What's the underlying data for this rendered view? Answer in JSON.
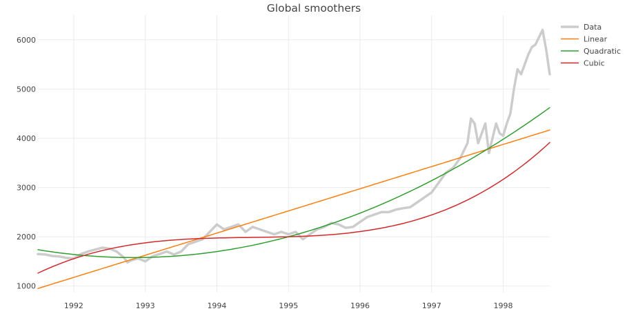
{
  "chart_data": {
    "type": "line",
    "title": "Global smoothers",
    "xlabel": "",
    "ylabel": "",
    "xlim": [
      1991.5,
      1998.65
    ],
    "ylim": [
      870,
      6500
    ],
    "xticks": [
      1992,
      1993,
      1994,
      1995,
      1996,
      1997,
      1998
    ],
    "xtick_labels": [
      "1992",
      "1993",
      "1994",
      "1995",
      "1996",
      "1997",
      "1998"
    ],
    "yticks": [
      1000,
      2000,
      3000,
      4000,
      5000,
      6000
    ],
    "ytick_labels": [
      "1000",
      "2000",
      "3000",
      "4000",
      "5000",
      "6000"
    ],
    "grid": true,
    "legend_position": "top-right",
    "series": [
      {
        "name": "Data",
        "color": "#cccccc",
        "x": [
          1991.5,
          1991.6,
          1991.7,
          1991.8,
          1991.9,
          1992.0,
          1992.1,
          1992.2,
          1992.3,
          1992.4,
          1992.5,
          1992.6,
          1992.7,
          1992.75,
          1992.8,
          1992.9,
          1993.0,
          1993.1,
          1993.2,
          1993.3,
          1993.4,
          1993.5,
          1993.6,
          1993.7,
          1993.8,
          1993.9,
          1994.0,
          1994.1,
          1994.2,
          1994.3,
          1994.4,
          1994.5,
          1994.6,
          1994.7,
          1994.8,
          1994.9,
          1995.0,
          1995.1,
          1995.2,
          1995.3,
          1995.4,
          1995.5,
          1995.6,
          1995.7,
          1995.8,
          1995.9,
          1996.0,
          1996.1,
          1996.2,
          1996.3,
          1996.4,
          1996.5,
          1996.6,
          1996.7,
          1996.8,
          1996.9,
          1997.0,
          1997.1,
          1997.2,
          1997.3,
          1997.4,
          1997.5,
          1997.55,
          1997.6,
          1997.65,
          1997.7,
          1997.75,
          1997.8,
          1997.85,
          1997.9,
          1997.95,
          1998.0,
          1998.05,
          1998.1,
          1998.15,
          1998.2,
          1998.25,
          1998.3,
          1998.35,
          1998.4,
          1998.45,
          1998.5,
          1998.55,
          1998.6,
          1998.65
        ],
        "values": [
          1650,
          1640,
          1610,
          1600,
          1570,
          1560,
          1650,
          1700,
          1740,
          1780,
          1760,
          1700,
          1580,
          1480,
          1520,
          1560,
          1500,
          1600,
          1650,
          1700,
          1640,
          1700,
          1850,
          1900,
          1950,
          2100,
          2250,
          2150,
          2200,
          2250,
          2100,
          2200,
          2150,
          2100,
          2050,
          2100,
          2050,
          2100,
          1950,
          2050,
          2150,
          2200,
          2280,
          2250,
          2180,
          2200,
          2300,
          2400,
          2450,
          2500,
          2500,
          2550,
          2580,
          2600,
          2700,
          2800,
          2900,
          3100,
          3300,
          3400,
          3600,
          3900,
          4400,
          4300,
          3900,
          4100,
          4300,
          3700,
          4000,
          4300,
          4100,
          4050,
          4300,
          4500,
          5000,
          5400,
          5300,
          5500,
          5700,
          5850,
          5900,
          6050,
          6200,
          5800,
          5300
        ]
      },
      {
        "name": "Linear",
        "color": "#ff7f0e",
        "fit": {
          "kind": "polynomial",
          "x0": 1995.0,
          "coef": [
            2525,
            450
          ]
        }
      },
      {
        "name": "Quadratic",
        "color": "#2ca02c",
        "fit": {
          "kind": "polynomial",
          "x0": 1995.0,
          "coef": [
            2000,
            390,
            90
          ]
        }
      },
      {
        "name": "Cubic",
        "color": "#d62728",
        "fit": {
          "kind": "polynomial",
          "x0": 1995.0,
          "coef": [
            2000,
            40,
            40,
            25.4
          ]
        }
      }
    ]
  }
}
